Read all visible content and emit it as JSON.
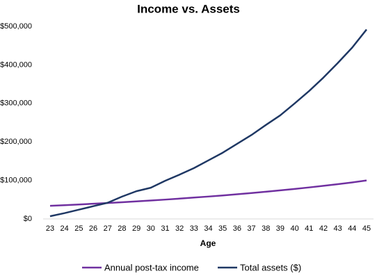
{
  "chart_data": {
    "type": "line",
    "title": "Income vs. Assets",
    "x_label": "Age",
    "x": [
      23,
      24,
      25,
      26,
      27,
      28,
      29,
      30,
      31,
      32,
      33,
      34,
      35,
      36,
      37,
      38,
      39,
      40,
      41,
      42,
      43,
      44,
      45
    ],
    "xlim": [
      23,
      45
    ],
    "ylim": [
      0,
      500000
    ],
    "yticks": [
      {
        "value": 0,
        "label": "$0"
      },
      {
        "value": 100000,
        "label": "$100,000"
      },
      {
        "value": 200000,
        "label": "$200,000"
      },
      {
        "value": 300000,
        "label": "$300,000"
      },
      {
        "value": 400000,
        "label": "$400,000"
      },
      {
        "value": 500000,
        "label": "$500,000"
      }
    ],
    "grid": false,
    "legend": "bottom",
    "series": [
      {
        "name": "Annual post-tax income",
        "color": "#7030a0",
        "values": [
          34000,
          35700,
          37500,
          39400,
          41300,
          43400,
          45600,
          47800,
          50200,
          52700,
          55400,
          58100,
          61000,
          64100,
          67300,
          70700,
          74200,
          77900,
          81800,
          85900,
          90200,
          94700,
          100000
        ]
      },
      {
        "name": "Total assets ($)",
        "color": "#1f3864",
        "values": [
          7000,
          15000,
          24000,
          33000,
          42000,
          58000,
          72000,
          81000,
          99000,
          115000,
          132000,
          152000,
          172000,
          195000,
          218000,
          244000,
          269000,
          300000,
          332000,
          367000,
          405000,
          445000,
          492000
        ]
      }
    ]
  }
}
